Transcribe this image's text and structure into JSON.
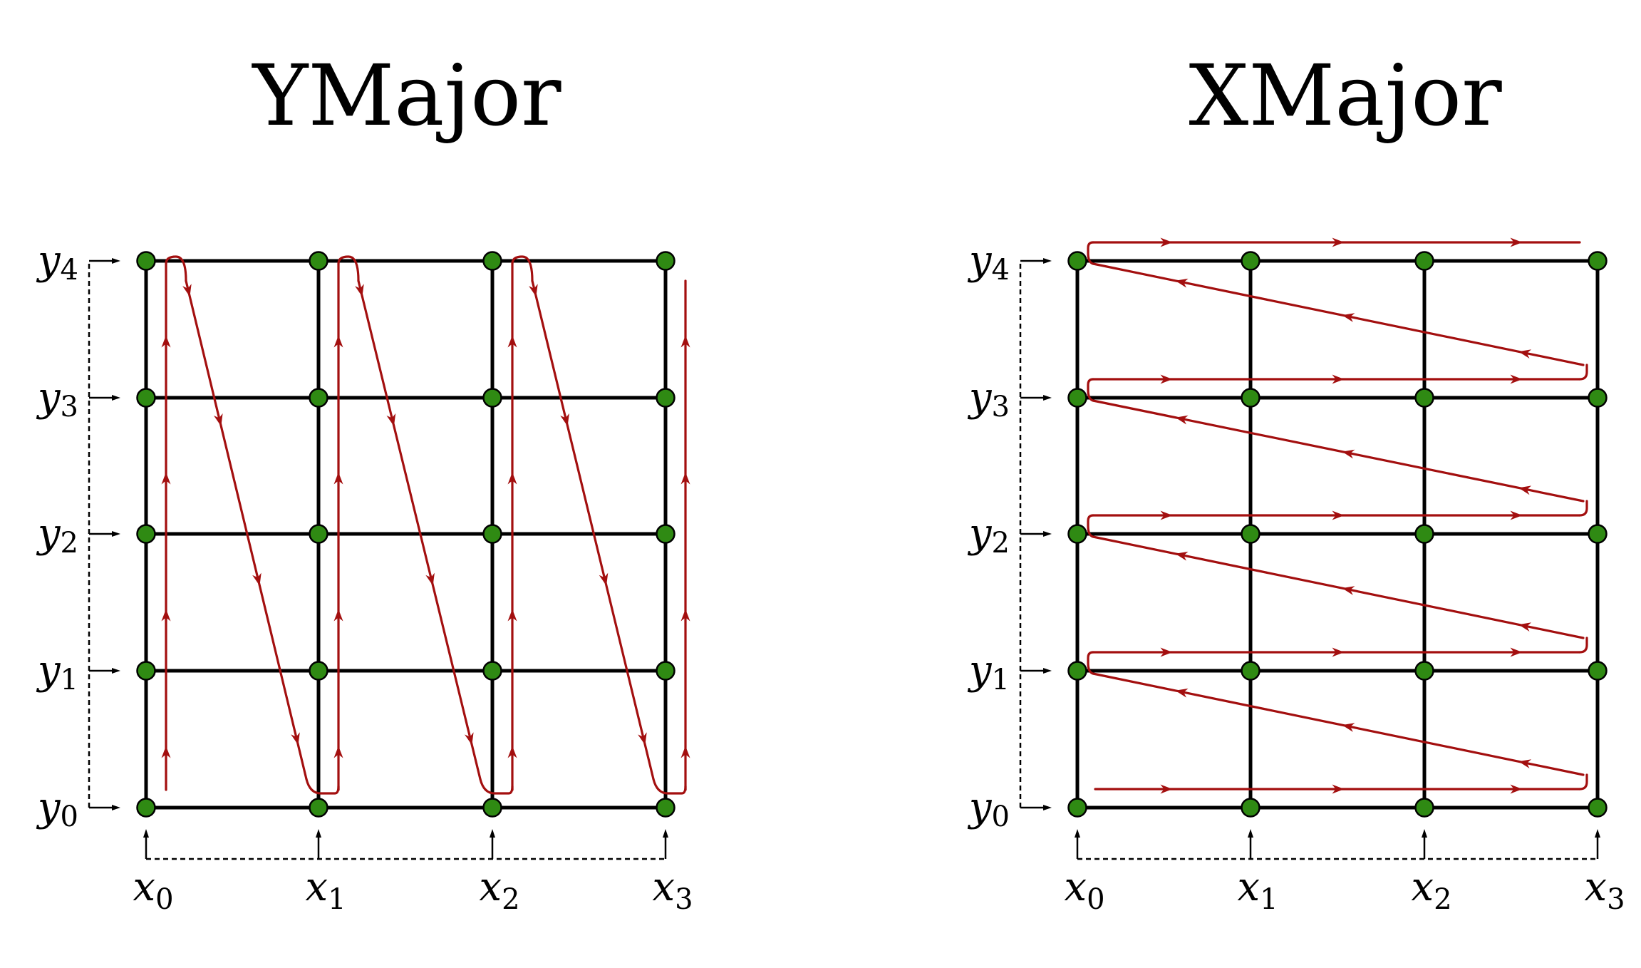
{
  "panels": [
    {
      "id": "ymajor",
      "title": "YMajor",
      "order": "ymajor",
      "x_labels": [
        {
          "base": "x",
          "sub": "0"
        },
        {
          "base": "x",
          "sub": "1"
        },
        {
          "base": "x",
          "sub": "2"
        },
        {
          "base": "x",
          "sub": "3"
        }
      ],
      "y_labels": [
        {
          "base": "y",
          "sub": "0"
        },
        {
          "base": "y",
          "sub": "1"
        },
        {
          "base": "y",
          "sub": "2"
        },
        {
          "base": "y",
          "sub": "3"
        },
        {
          "base": "y",
          "sub": "4"
        }
      ]
    },
    {
      "id": "xmajor",
      "title": "XMajor",
      "order": "xmajor",
      "x_labels": [
        {
          "base": "x",
          "sub": "0"
        },
        {
          "base": "x",
          "sub": "1"
        },
        {
          "base": "x",
          "sub": "2"
        },
        {
          "base": "x",
          "sub": "3"
        }
      ],
      "y_labels": [
        {
          "base": "y",
          "sub": "0"
        },
        {
          "base": "y",
          "sub": "1"
        },
        {
          "base": "y",
          "sub": "2"
        },
        {
          "base": "y",
          "sub": "3"
        },
        {
          "base": "y",
          "sub": "4"
        }
      ]
    }
  ],
  "colors": {
    "grid": "#000000",
    "node": "#2f8a13",
    "traversal": "#a30f0f"
  }
}
